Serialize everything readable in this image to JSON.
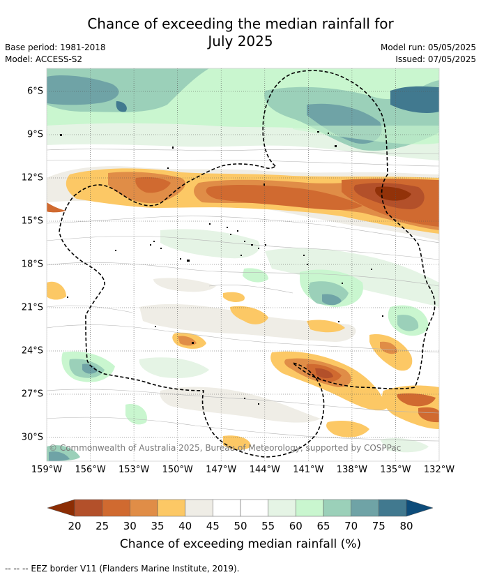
{
  "title": "Chance of exceeding the median rainfall for July 2025",
  "title_lines": [
    "Chance of exceeding the median rainfall for",
    "July 2025"
  ],
  "meta_left": [
    "Base period: 1981-2018",
    "Model: ACCESS-S2"
  ],
  "meta_right": [
    "Model run: 05/05/2025",
    "Issued: 07/05/2025"
  ],
  "copyright": "© Commonwealth of Australia 2025, Bureau of Meteorology, supported by COSPPac",
  "y_axis_labels": [
    "6°S",
    "9°S",
    "12°S",
    "15°S",
    "18°S",
    "21°S",
    "24°S",
    "27°S",
    "30°S"
  ],
  "x_axis_labels": [
    "159°W",
    "156°W",
    "153°W",
    "150°W",
    "147°W",
    "144°W",
    "141°W",
    "138°W",
    "135°W",
    "132°W"
  ],
  "colorbar": {
    "ticks": [
      "20",
      "25",
      "30",
      "35",
      "40",
      "45",
      "50",
      "55",
      "60",
      "65",
      "70",
      "75",
      "80"
    ],
    "colors": [
      "#8c2d04",
      "#b3502a",
      "#d06a30",
      "#e08d47",
      "#fcc865",
      "#efede6",
      "#ffffff",
      "#ffffff",
      "#e5f4e5",
      "#c9f6cf",
      "#9bd0b9",
      "#6fa3a6",
      "#41798f",
      "#0d4c7a"
    ],
    "title": "Chance of exceeding median rainfall (%)"
  },
  "footer": "--  --  -- EEZ border V11 (Flanders Marine Institute, 2019).",
  "map_extent": {
    "lon": [
      -159,
      -132
    ],
    "lat": [
      -5,
      -31.5
    ]
  }
}
